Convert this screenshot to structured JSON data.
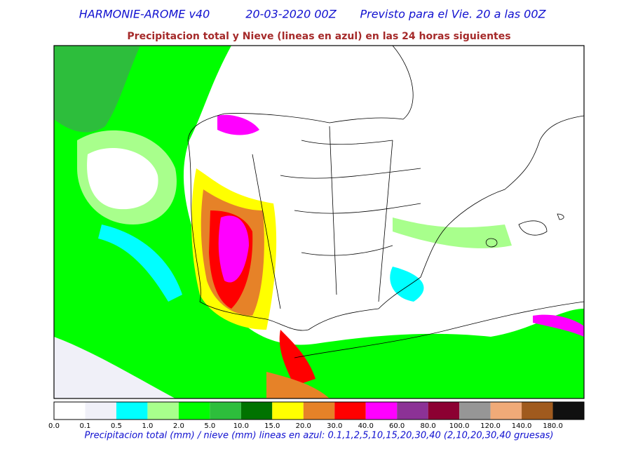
{
  "header": {
    "model": "HARMONIE-AROME v40",
    "run": "20-03-2020 00Z",
    "valid": "Previsto para el Vie. 20 a las 00Z"
  },
  "subtitle": "Precipitacion total y Nieve (lineas en azul) en las 24 horas siguientes",
  "colorbar": {
    "levels": [
      {
        "label": "0.0",
        "color": "#ffffff"
      },
      {
        "label": "0.1",
        "color": "#f0f0f8"
      },
      {
        "label": "0.5",
        "color": "#00ffff"
      },
      {
        "label": "1.0",
        "color": "#a8ff8c"
      },
      {
        "label": "2.0",
        "color": "#00ff00"
      },
      {
        "label": "5.0",
        "color": "#2dbe3c"
      },
      {
        "label": "10.0",
        "color": "#007300"
      },
      {
        "label": "15.0",
        "color": "#ffff00"
      },
      {
        "label": "20.0",
        "color": "#e68228"
      },
      {
        "label": "30.0",
        "color": "#ff0000"
      },
      {
        "label": "40.0",
        "color": "#ff00ff"
      },
      {
        "label": "60.0",
        "color": "#8c3296"
      },
      {
        "label": "80.0",
        "color": "#8c0032"
      },
      {
        "label": "100.0",
        "color": "#969696"
      },
      {
        "label": "120.0",
        "color": "#f0aa78"
      },
      {
        "label": "140.0",
        "color": "#a05a1e"
      },
      {
        "label": "180.0",
        "color": "#101010"
      }
    ]
  },
  "caption": "Precipitacion total (mm) / nieve (mm) lineas en azul: 0.1,1,2,5,10,15,20,30,40  (2,10,20,30,40 gruesas)"
}
